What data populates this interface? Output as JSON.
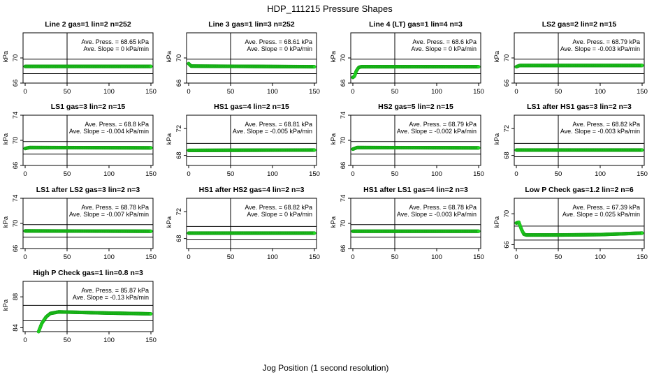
{
  "figure": {
    "title": "HDP_111215  Pressure Shapes",
    "xlabel": "Jog Position (1 second resolution)"
  },
  "chart_data": [
    {
      "type": "scatter",
      "title": "Line 2 gas=1 lin=2 n=252",
      "ylabel": "kPa",
      "xlim": [
        0,
        150
      ],
      "ylim": [
        66,
        74
      ],
      "yticks": [
        66,
        70
      ],
      "xticks": [
        0,
        50,
        100,
        150
      ],
      "hlines": [
        67.5,
        69.8
      ],
      "vline": 50,
      "ave_press": "Ave. Press. = 68.65 kPa",
      "ave_slope": "Ave. Slope = 0 kPa/min",
      "profile": [
        [
          0,
          68.65
        ],
        [
          150,
          68.65
        ]
      ]
    },
    {
      "type": "scatter",
      "title": "Line 3 gas=1 lin=3 n=252",
      "ylabel": "kPa",
      "xlim": [
        0,
        150
      ],
      "ylim": [
        66,
        74
      ],
      "yticks": [
        66,
        70
      ],
      "xticks": [
        0,
        50,
        100,
        150
      ],
      "hlines": [
        67.5,
        69.8
      ],
      "vline": 50,
      "ave_press": "Ave. Press. = 68.61 kPa",
      "ave_slope": "Ave. Slope = 0 kPa/min",
      "profile": [
        [
          0,
          69.1
        ],
        [
          3,
          68.7
        ],
        [
          150,
          68.6
        ]
      ]
    },
    {
      "type": "scatter",
      "title": "Line 4 (LT) gas=1 lin=4 n=3",
      "ylabel": "kPa",
      "xlim": [
        0,
        150
      ],
      "ylim": [
        66,
        74
      ],
      "yticks": [
        66,
        70
      ],
      "xticks": [
        0,
        50,
        100,
        150
      ],
      "hlines": [
        67.5,
        69.8
      ],
      "vline": 50,
      "ave_press": "Ave. Press. = 68.6 kPa",
      "ave_slope": "Ave. Slope = 0 kPa/min",
      "profile": [
        [
          0,
          66.9
        ],
        [
          2,
          67.1
        ],
        [
          4,
          67.9
        ],
        [
          7,
          68.5
        ],
        [
          10,
          68.6
        ],
        [
          150,
          68.6
        ]
      ]
    },
    {
      "type": "scatter",
      "title": "LS2 gas=2 lin=2 n=15",
      "ylabel": "kPa",
      "xlim": [
        0,
        150
      ],
      "ylim": [
        66,
        74
      ],
      "yticks": [
        66,
        70
      ],
      "xticks": [
        0,
        50,
        100,
        150
      ],
      "hlines": [
        67.5,
        69.8
      ],
      "vline": 50,
      "ave_press": "Ave. Press. = 68.79 kPa",
      "ave_slope": "Ave. Slope = -0.003 kPa/min",
      "profile": [
        [
          0,
          68.6
        ],
        [
          4,
          68.8
        ],
        [
          150,
          68.8
        ]
      ]
    },
    {
      "type": "scatter",
      "title": "LS1 gas=3 lin=2 n=15",
      "ylabel": "kPa",
      "xlim": [
        0,
        150
      ],
      "ylim": [
        66,
        74
      ],
      "yticks": [
        66,
        70,
        74
      ],
      "xticks": [
        0,
        50,
        100,
        150
      ],
      "hlines": [
        67.8,
        69.8
      ],
      "vline": 50,
      "ave_press": "Ave. Press. = 68.8 kPa",
      "ave_slope": "Ave. Slope = -0.004 kPa/min",
      "profile": [
        [
          0,
          68.7
        ],
        [
          5,
          68.85
        ],
        [
          150,
          68.8
        ]
      ]
    },
    {
      "type": "scatter",
      "title": "HS1 gas=4 lin=2 n=15",
      "ylabel": "kPa",
      "xlim": [
        0,
        150
      ],
      "ylim": [
        66.5,
        74
      ],
      "yticks": [
        68,
        72
      ],
      "xticks": [
        0,
        50,
        100,
        150
      ],
      "hlines": [
        67.8,
        69.8
      ],
      "vline": 50,
      "ave_press": "Ave. Press. = 68.81 kPa",
      "ave_slope": "Ave. Slope = -0.005 kPa/min",
      "profile": [
        [
          0,
          68.75
        ],
        [
          150,
          68.8
        ]
      ]
    },
    {
      "type": "scatter",
      "title": "HS2 gas=5 lin=2 n=15",
      "ylabel": "kPa",
      "xlim": [
        0,
        150
      ],
      "ylim": [
        66,
        74
      ],
      "yticks": [
        66,
        70,
        74
      ],
      "xticks": [
        0,
        50,
        100,
        150
      ],
      "hlines": [
        67.8,
        69.8
      ],
      "vline": 50,
      "ave_press": "Ave. Press. = 68.79 kPa",
      "ave_slope": "Ave. Slope = -0.002 kPa/min",
      "profile": [
        [
          0,
          68.6
        ],
        [
          5,
          68.85
        ],
        [
          150,
          68.8
        ]
      ]
    },
    {
      "type": "scatter",
      "title": "LS1 after HS1 gas=3 lin=2 n=3",
      "ylabel": "kPa",
      "xlim": [
        0,
        150
      ],
      "ylim": [
        66.5,
        74
      ],
      "yticks": [
        68,
        72
      ],
      "xticks": [
        0,
        50,
        100,
        150
      ],
      "hlines": [
        67.8,
        69.8
      ],
      "vline": 50,
      "ave_press": "Ave. Press. = 68.82 kPa",
      "ave_slope": "Ave. Slope = -0.003 kPa/min",
      "profile": [
        [
          0,
          68.8
        ],
        [
          150,
          68.8
        ]
      ]
    },
    {
      "type": "scatter",
      "title": "LS1 after LS2 gas=3 lin=2 n=3",
      "ylabel": "kPa",
      "xlim": [
        0,
        150
      ],
      "ylim": [
        66,
        74
      ],
      "yticks": [
        66,
        70,
        74
      ],
      "xticks": [
        0,
        50,
        100,
        150
      ],
      "hlines": [
        67.8,
        69.8
      ],
      "vline": 50,
      "ave_press": "Ave. Press. = 68.78 kPa",
      "ave_slope": "Ave. Slope = -0.007 kPa/min",
      "profile": [
        [
          0,
          68.8
        ],
        [
          150,
          68.75
        ]
      ]
    },
    {
      "type": "scatter",
      "title": "HS1 after HS2 gas=4 lin=2 n=3",
      "ylabel": "kPa",
      "xlim": [
        0,
        150
      ],
      "ylim": [
        66.5,
        74
      ],
      "yticks": [
        68,
        72
      ],
      "xticks": [
        0,
        50,
        100,
        150
      ],
      "hlines": [
        67.8,
        69.8
      ],
      "vline": 50,
      "ave_press": "Ave. Press. = 68.82 kPa",
      "ave_slope": "Ave. Slope = 0 kPa/min",
      "profile": [
        [
          0,
          68.8
        ],
        [
          150,
          68.8
        ]
      ]
    },
    {
      "type": "scatter",
      "title": "HS1 after LS1 gas=4 lin=2 n=3",
      "ylabel": "kPa",
      "xlim": [
        0,
        150
      ],
      "ylim": [
        66,
        74
      ],
      "yticks": [
        66,
        70,
        74
      ],
      "xticks": [
        0,
        50,
        100,
        150
      ],
      "hlines": [
        67.8,
        69.8
      ],
      "vline": 50,
      "ave_press": "Ave. Press. = 68.78 kPa",
      "ave_slope": "Ave. Slope = -0.003 kPa/min",
      "profile": [
        [
          0,
          68.75
        ],
        [
          150,
          68.75
        ]
      ]
    },
    {
      "type": "scatter",
      "title": "Low P Check gas=1.2 lin=2 n=6",
      "ylabel": "kPa",
      "xlim": [
        0,
        150
      ],
      "ylim": [
        65.5,
        72
      ],
      "yticks": [
        66,
        70
      ],
      "xticks": [
        0,
        50,
        100,
        150
      ],
      "hlines": [
        66.6,
        68.4
      ],
      "vline": 50,
      "ave_press": "Ave. Press. = 67.39 kPa",
      "ave_slope": "Ave. Slope = 0.025 kPa/min",
      "profile": [
        [
          0,
          68.8
        ],
        [
          3,
          68.9
        ],
        [
          6,
          68.0
        ],
        [
          9,
          67.35
        ],
        [
          12,
          67.25
        ],
        [
          50,
          67.25
        ],
        [
          100,
          67.3
        ],
        [
          150,
          67.5
        ]
      ]
    },
    {
      "type": "scatter",
      "title": "High P Check gas=1 lin=0.8 n=3",
      "ylabel": "kPa",
      "xlim": [
        0,
        150
      ],
      "ylim": [
        83.5,
        90
      ],
      "yticks": [
        84,
        88
      ],
      "xticks": [
        0,
        50,
        100,
        150
      ],
      "hlines": [
        84.9,
        86.9
      ],
      "vline": 50,
      "ave_press": "Ave. Press. = 85.87 kPa",
      "ave_slope": "Ave. Slope = -0.13 kPa/min",
      "profile": [
        [
          16,
          83.5
        ],
        [
          20,
          84.6
        ],
        [
          25,
          85.4
        ],
        [
          30,
          85.85
        ],
        [
          40,
          86.05
        ],
        [
          60,
          86.0
        ],
        [
          100,
          85.9
        ],
        [
          150,
          85.8
        ]
      ]
    }
  ]
}
